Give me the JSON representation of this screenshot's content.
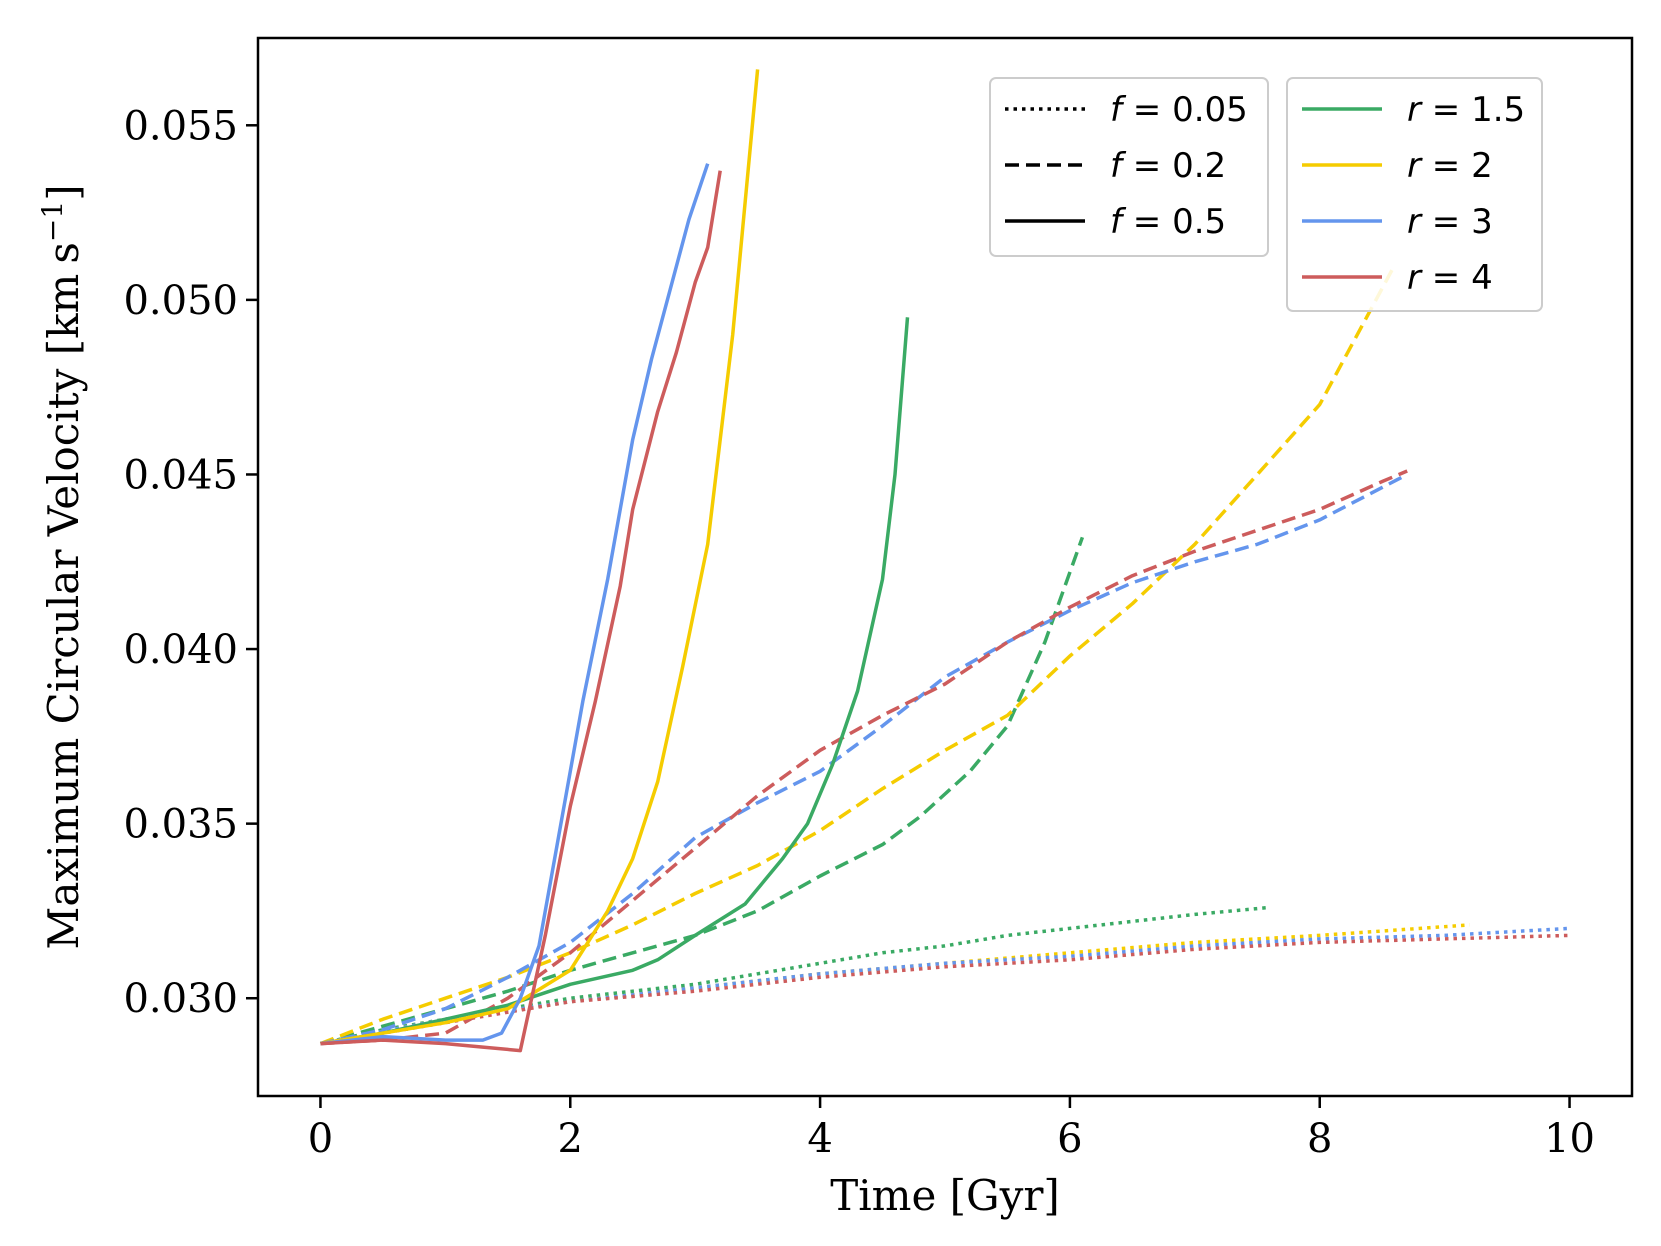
{
  "chart_data": {
    "type": "line",
    "xlabel": "Time [Gyr]",
    "ylabel": "Maximum Circular Velocity [km s⁻¹]",
    "ylabel_main": "Maximum Circular Velocity [km",
    "ylabel_unit": "s",
    "ylabel_exp": "−1",
    "ylabel_close": "]",
    "xlim": [
      -0.5,
      10.5
    ],
    "ylim": [
      0.0272,
      0.0575
    ],
    "xticks": [
      0,
      2,
      4,
      6,
      8,
      10
    ],
    "xtick_labels": [
      "0",
      "2",
      "4",
      "6",
      "8",
      "10"
    ],
    "yticks": [
      0.03,
      0.035,
      0.04,
      0.045,
      0.05,
      0.055
    ],
    "ytick_labels": [
      "0.030",
      "0.035",
      "0.040",
      "0.045",
      "0.050",
      "0.055"
    ],
    "grid": false,
    "legend_styles": {
      "placement": "upper-center",
      "entries": [
        {
          "var": "f",
          "value": "0.05",
          "dash": "dotted"
        },
        {
          "var": "f",
          "value": "0.2",
          "dash": "dashed"
        },
        {
          "var": "f",
          "value": "0.5",
          "dash": "solid"
        }
      ]
    },
    "legend_colors": {
      "placement": "top-right",
      "entries": [
        {
          "var": "r",
          "value": "1.5",
          "color": "#3aaa64"
        },
        {
          "var": "r",
          "value": "2",
          "color": "#f5cc00"
        },
        {
          "var": "r",
          "value": "3",
          "color": "#6495ed"
        },
        {
          "var": "r",
          "value": "4",
          "color": "#cd5c5c"
        }
      ]
    },
    "series": [
      {
        "r": "1.5",
        "f": "0.05",
        "color": "#3aaa64",
        "dash": "dotted",
        "x": [
          0,
          0.5,
          1,
          1.5,
          2,
          2.5,
          3,
          3.5,
          4,
          4.5,
          5,
          5.5,
          6,
          6.5,
          7,
          7.6
        ],
        "y": [
          0.0287,
          0.0291,
          0.0294,
          0.0297,
          0.03,
          0.0302,
          0.0304,
          0.0307,
          0.031,
          0.0313,
          0.0315,
          0.0318,
          0.032,
          0.0322,
          0.0324,
          0.0326
        ]
      },
      {
        "r": "2",
        "f": "0.05",
        "color": "#f5cc00",
        "dash": "dotted",
        "x": [
          0,
          1,
          2,
          3,
          4,
          5,
          6,
          7,
          8,
          9.2
        ],
        "y": [
          0.0287,
          0.0294,
          0.0299,
          0.0303,
          0.0307,
          0.031,
          0.0313,
          0.0316,
          0.0318,
          0.0321
        ]
      },
      {
        "r": "3",
        "f": "0.05",
        "color": "#6495ed",
        "dash": "dotted",
        "x": [
          0,
          1,
          2,
          3,
          4,
          5,
          6,
          7,
          8,
          9,
          10
        ],
        "y": [
          0.0287,
          0.0294,
          0.0299,
          0.0303,
          0.0307,
          0.031,
          0.0312,
          0.0315,
          0.0317,
          0.0318,
          0.032
        ]
      },
      {
        "r": "4",
        "f": "0.05",
        "color": "#cd5c5c",
        "dash": "dotted",
        "x": [
          0,
          1,
          2,
          3,
          4,
          5,
          6,
          7,
          8,
          9,
          10
        ],
        "y": [
          0.0287,
          0.0293,
          0.0299,
          0.0302,
          0.0306,
          0.0309,
          0.0311,
          0.0314,
          0.0316,
          0.0317,
          0.0318
        ]
      },
      {
        "r": "1.5",
        "f": "0.2",
        "color": "#3aaa64",
        "dash": "dashed",
        "x": [
          0,
          0.5,
          1,
          1.5,
          2,
          2.5,
          3,
          3.5,
          4,
          4.5,
          4.8,
          5.2,
          5.5,
          5.8,
          6.1
        ],
        "y": [
          0.0287,
          0.0292,
          0.0297,
          0.0302,
          0.0308,
          0.0313,
          0.0318,
          0.0325,
          0.0335,
          0.0344,
          0.0352,
          0.0365,
          0.0378,
          0.0402,
          0.0432
        ]
      },
      {
        "r": "2",
        "f": "0.2",
        "color": "#f5cc00",
        "dash": "dashed",
        "x": [
          0,
          0.5,
          1,
          1.5,
          2,
          2.5,
          3,
          3.5,
          4,
          4.5,
          5,
          5.5,
          6,
          6.5,
          7,
          7.5,
          8,
          8.3,
          8.6
        ],
        "y": [
          0.0287,
          0.0294,
          0.03,
          0.0306,
          0.0313,
          0.0321,
          0.033,
          0.0338,
          0.0348,
          0.036,
          0.0371,
          0.0381,
          0.0398,
          0.0413,
          0.043,
          0.045,
          0.047,
          0.049,
          0.051
        ]
      },
      {
        "r": "3",
        "f": "0.2",
        "color": "#6495ed",
        "dash": "dashed",
        "x": [
          0,
          0.5,
          1,
          1.5,
          2,
          2.5,
          3,
          3.5,
          4,
          4.5,
          5,
          5.5,
          6,
          6.5,
          7,
          7.5,
          8,
          8.7
        ],
        "y": [
          0.0287,
          0.0291,
          0.0297,
          0.0306,
          0.0316,
          0.033,
          0.0346,
          0.0356,
          0.0365,
          0.0378,
          0.0392,
          0.0402,
          0.0411,
          0.0419,
          0.0425,
          0.043,
          0.0437,
          0.045
        ]
      },
      {
        "r": "4",
        "f": "0.2",
        "color": "#cd5c5c",
        "dash": "dashed",
        "x": [
          0,
          0.5,
          1,
          1.5,
          2,
          2.5,
          3,
          3.5,
          4,
          4.5,
          5,
          5.5,
          6,
          6.5,
          7,
          7.5,
          8,
          8.5,
          8.7
        ],
        "y": [
          0.0287,
          0.0288,
          0.029,
          0.03,
          0.0313,
          0.0328,
          0.0343,
          0.0358,
          0.0371,
          0.0381,
          0.039,
          0.0402,
          0.0412,
          0.0421,
          0.0428,
          0.0434,
          0.044,
          0.0448,
          0.0451
        ]
      },
      {
        "r": "1.5",
        "f": "0.5",
        "color": "#3aaa64",
        "dash": "solid",
        "x": [
          0,
          0.5,
          1,
          1.5,
          2,
          2.5,
          2.7,
          3,
          3.4,
          3.7,
          3.9,
          4.1,
          4.3,
          4.5,
          4.6,
          4.7
        ],
        "y": [
          0.0287,
          0.029,
          0.0294,
          0.0298,
          0.0304,
          0.0308,
          0.0311,
          0.0318,
          0.0327,
          0.034,
          0.035,
          0.0367,
          0.0388,
          0.042,
          0.045,
          0.0495
        ]
      },
      {
        "r": "2",
        "f": "0.5",
        "color": "#f5cc00",
        "dash": "solid",
        "x": [
          0,
          0.5,
          1,
          1.5,
          2,
          2.3,
          2.5,
          2.7,
          2.9,
          3.1,
          3.3,
          3.5
        ],
        "y": [
          0.0287,
          0.029,
          0.0293,
          0.0297,
          0.0308,
          0.0325,
          0.034,
          0.0362,
          0.0395,
          0.043,
          0.049,
          0.0566
        ]
      },
      {
        "r": "3",
        "f": "0.5",
        "color": "#6495ed",
        "dash": "solid",
        "x": [
          0,
          0.5,
          1,
          1.3,
          1.45,
          1.6,
          1.75,
          1.9,
          2.1,
          2.3,
          2.5,
          2.65,
          2.8,
          2.95,
          3.1
        ],
        "y": [
          0.0287,
          0.0289,
          0.0288,
          0.0288,
          0.029,
          0.03,
          0.0315,
          0.0345,
          0.0385,
          0.042,
          0.046,
          0.0483,
          0.0503,
          0.0523,
          0.0539
        ]
      },
      {
        "r": "4",
        "f": "0.5",
        "color": "#cd5c5c",
        "dash": "solid",
        "x": [
          0,
          0.5,
          1,
          1.3,
          1.6,
          1.8,
          2,
          2.2,
          2.4,
          2.5,
          2.7,
          2.85,
          3,
          3.1,
          3.2
        ],
        "y": [
          0.0287,
          0.0288,
          0.0287,
          0.0286,
          0.0285,
          0.0318,
          0.0355,
          0.0385,
          0.0418,
          0.044,
          0.0468,
          0.0485,
          0.0505,
          0.0515,
          0.0537
        ]
      }
    ]
  }
}
